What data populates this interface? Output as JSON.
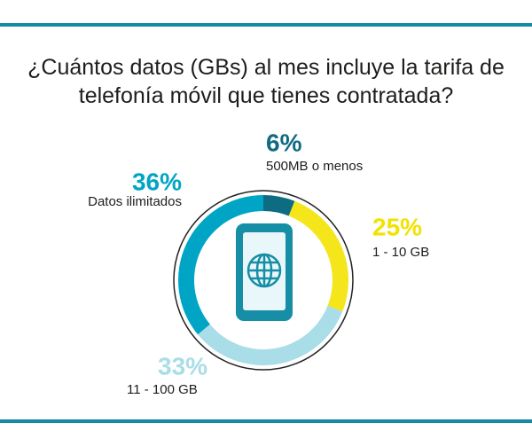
{
  "chart_data": {
    "type": "donut",
    "title": "¿Cuántos datos (GBs) al mes incluye la tarifa de telefonía móvil que tienes contratada?",
    "categories": [
      "500MB o menos",
      "1 - 10 GB",
      "11 - 100 GB",
      "Datos ilimitados"
    ],
    "values": [
      6,
      25,
      33,
      36
    ],
    "value_labels": [
      "6%",
      "25%",
      "33%",
      "36%"
    ],
    "colors": [
      "#0d6b82",
      "#f4e61a",
      "#a9dde8",
      "#00a5c6"
    ]
  }
}
